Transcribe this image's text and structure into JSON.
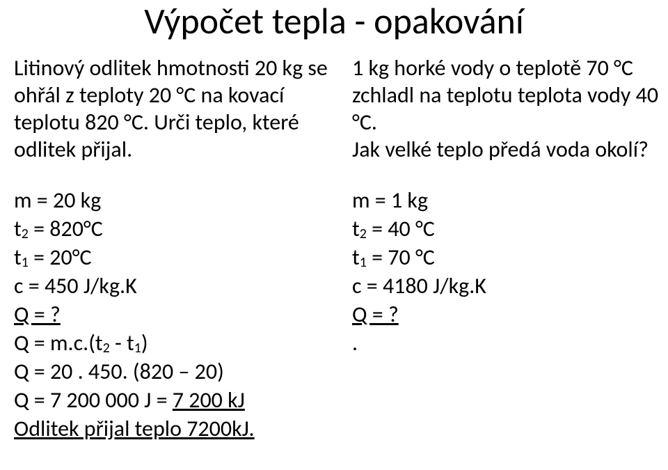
{
  "title": "Výpočet tepla - opakování",
  "left": {
    "problem": "Litinový odlitek hmotnosti 20 kg se ohřál z teploty 20 °C na kovací teplotu 820 °C. Urči teplo, které odlitek přijal.",
    "m_label": "m = 20 kg",
    "t2": {
      "pre": "t",
      "sub": "2",
      "post": " = 820°C"
    },
    "t1": {
      "pre": "t",
      "sub": "1",
      "post": " = 20°C"
    },
    "c_label": "c = 450 J/kg.K",
    "q_label": "Q = ?",
    "formula": {
      "pre": "Q = m.c.(t",
      "sub1": "2",
      "mid": " - t",
      "sub2": "1",
      "post": ")"
    },
    "calc1": "Q = 20 . 450. (820 – 20)",
    "calc2_pre": "Q = 7 200 000 J = ",
    "calc2_u": "7 200 kJ",
    "answer": "Odlitek přijal teplo 7200kJ."
  },
  "right": {
    "problem": "1 kg horké vody o teplotě 70 °C zchladl na teplotu teplota vody 40 °C.\nJak velké teplo předá voda okolí?",
    "m_label": "m = 1 kg",
    "t2": {
      "pre": "t",
      "sub": "2",
      "post": " = 40 °C"
    },
    "t1": {
      "pre": "t",
      "sub": "1",
      "post": " = 70 °C"
    },
    "c_label": "c = 4180 J/kg.K",
    "q_label": "Q = ?",
    "dot": "."
  },
  "style": {
    "background": "#ffffff",
    "text_color": "#000000",
    "title_fontsize": 52,
    "body_fontsize": 32,
    "sub_fontsize": 20,
    "font_family": "Calibri"
  }
}
